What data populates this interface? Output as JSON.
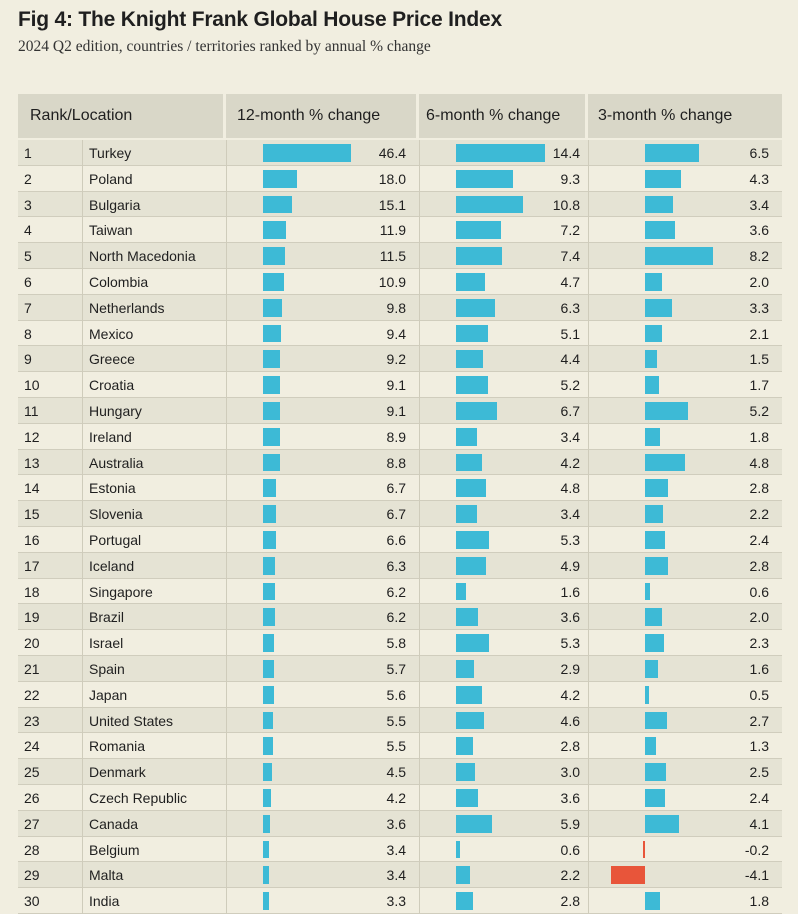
{
  "title": "Fig 4: The Knight Frank Global House Price Index",
  "subtitle": "2024 Q2 edition, countries / territories ranked by annual % change",
  "colors": {
    "positive": "#3dbad6",
    "negative": "#e8553a",
    "background": "#f1eee0",
    "header": "#d9d7c8"
  },
  "chart_data": {
    "type": "table",
    "columns": [
      "Rank/Location",
      "12-month % change",
      "6-month % change",
      "3-month % change"
    ],
    "rows": [
      {
        "rank": "1",
        "location": "Turkey",
        "m12": "46.4",
        "m6": "14.4",
        "m3": "6.5"
      },
      {
        "rank": "2",
        "location": "Poland",
        "m12": "18.0",
        "m6": "9.3",
        "m3": "4.3"
      },
      {
        "rank": "3",
        "location": "Bulgaria",
        "m12": "15.1",
        "m6": "10.8",
        "m3": "3.4"
      },
      {
        "rank": "4",
        "location": "Taiwan",
        "m12": "11.9",
        "m6": "7.2",
        "m3": "3.6"
      },
      {
        "rank": "5",
        "location": "North Macedonia",
        "m12": "11.5",
        "m6": "7.4",
        "m3": "8.2"
      },
      {
        "rank": "6",
        "location": "Colombia",
        "m12": "10.9",
        "m6": "4.7",
        "m3": "2.0"
      },
      {
        "rank": "7",
        "location": "Netherlands",
        "m12": "9.8",
        "m6": "6.3",
        "m3": "3.3"
      },
      {
        "rank": "8",
        "location": "Mexico",
        "m12": "9.4",
        "m6": "5.1",
        "m3": "2.1"
      },
      {
        "rank": "9",
        "location": "Greece",
        "m12": "9.2",
        "m6": "4.4",
        "m3": "1.5"
      },
      {
        "rank": "10",
        "location": "Croatia",
        "m12": "9.1",
        "m6": "5.2",
        "m3": "1.7"
      },
      {
        "rank": "11",
        "location": "Hungary",
        "m12": "9.1",
        "m6": "6.7",
        "m3": "5.2"
      },
      {
        "rank": "12",
        "location": "Ireland",
        "m12": "8.9",
        "m6": "3.4",
        "m3": "1.8"
      },
      {
        "rank": "13",
        "location": "Australia",
        "m12": "8.8",
        "m6": "4.2",
        "m3": "4.8"
      },
      {
        "rank": "14",
        "location": "Estonia",
        "m12": "6.7",
        "m6": "4.8",
        "m3": "2.8"
      },
      {
        "rank": "15",
        "location": "Slovenia",
        "m12": "6.7",
        "m6": "3.4",
        "m3": "2.2"
      },
      {
        "rank": "16",
        "location": "Portugal",
        "m12": "6.6",
        "m6": "5.3",
        "m3": "2.4"
      },
      {
        "rank": "17",
        "location": "Iceland",
        "m12": "6.3",
        "m6": "4.9",
        "m3": "2.8"
      },
      {
        "rank": "18",
        "location": "Singapore",
        "m12": "6.2",
        "m6": "1.6",
        "m3": "0.6"
      },
      {
        "rank": "19",
        "location": "Brazil",
        "m12": "6.2",
        "m6": "3.6",
        "m3": "2.0"
      },
      {
        "rank": "20",
        "location": "Israel",
        "m12": "5.8",
        "m6": "5.3",
        "m3": "2.3"
      },
      {
        "rank": "21",
        "location": "Spain",
        "m12": "5.7",
        "m6": "2.9",
        "m3": "1.6"
      },
      {
        "rank": "22",
        "location": "Japan",
        "m12": "5.6",
        "m6": "4.2",
        "m3": "0.5"
      },
      {
        "rank": "23",
        "location": "United States",
        "m12": "5.5",
        "m6": "4.6",
        "m3": "2.7"
      },
      {
        "rank": "24",
        "location": "Romania",
        "m12": "5.5",
        "m6": "2.8",
        "m3": "1.3"
      },
      {
        "rank": "25",
        "location": "Denmark",
        "m12": "4.5",
        "m6": "3.0",
        "m3": "2.5"
      },
      {
        "rank": "26",
        "location": "Czech Republic",
        "m12": "4.2",
        "m6": "3.6",
        "m3": "2.4"
      },
      {
        "rank": "27",
        "location": "Canada",
        "m12": "3.6",
        "m6": "5.9",
        "m3": "4.1"
      },
      {
        "rank": "28",
        "location": "Belgium",
        "m12": "3.4",
        "m6": "0.6",
        "m3": "-0.2"
      },
      {
        "rank": "29",
        "location": "Malta",
        "m12": "3.4",
        "m6": "2.2",
        "m3": "-4.1"
      },
      {
        "rank": "30",
        "location": "India",
        "m12": "3.3",
        "m6": "2.8",
        "m3": "1.8"
      }
    ]
  }
}
